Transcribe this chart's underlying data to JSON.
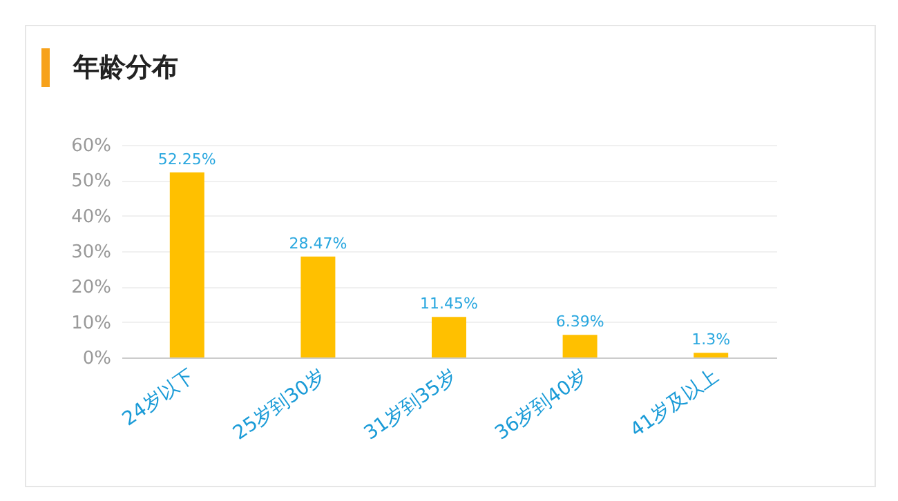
{
  "chart_data": {
    "type": "bar",
    "title": "年龄分布",
    "categories": [
      "24岁以下",
      "25岁到30岁",
      "31岁到35岁",
      "36岁到40岁",
      "41岁及以上"
    ],
    "values": [
      52.25,
      28.47,
      11.45,
      6.39,
      1.3
    ],
    "value_labels": [
      "52.25%",
      "28.47%",
      "11.45%",
      "6.39%",
      "1.3%"
    ],
    "color": "#ffc000",
    "ylim": [
      0,
      60
    ],
    "yticks": [
      {
        "value": 0,
        "label": "0%"
      },
      {
        "value": 10,
        "label": "10%"
      },
      {
        "value": 20,
        "label": "20%"
      },
      {
        "value": 30,
        "label": "30%"
      },
      {
        "value": 40,
        "label": "40%"
      },
      {
        "value": 50,
        "label": "50%"
      },
      {
        "value": 60,
        "label": "60%"
      }
    ],
    "grid": "y",
    "legend": false
  }
}
